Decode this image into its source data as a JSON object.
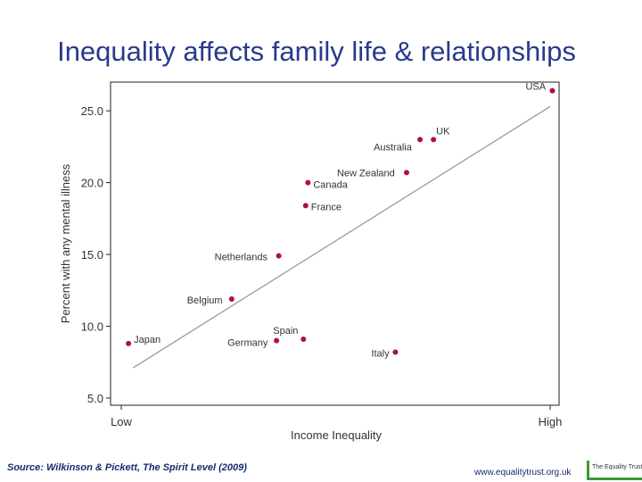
{
  "slide": {
    "title": "Inequality affects family life & relationships",
    "source": "Source: Wilkinson & Pickett, The Spirit Level (2009)",
    "url": "www.equalitytrust.org.uk",
    "logo_text": "The Equality Trust"
  },
  "chart_data": {
    "type": "scatter",
    "xlabel": "Income Inequality",
    "ylabel": "Percent with any mental illness",
    "x_tick_labels": [
      "Low",
      "High"
    ],
    "y_ticks": [
      "5.0",
      "10.0",
      "15.0",
      "20.0",
      "25.0"
    ],
    "x_range": [
      0,
      100
    ],
    "y_range": [
      4.5,
      27.0
    ],
    "grid": false,
    "trendline": [
      {
        "x": 5,
        "y": 7.1
      },
      {
        "x": 98,
        "y": 25.3
      }
    ],
    "points": [
      {
        "label": "USA",
        "x": 98.5,
        "y": 26.4
      },
      {
        "label": "UK",
        "x": 72.0,
        "y": 23.0
      },
      {
        "label": "Australia",
        "x": 69.0,
        "y": 23.0
      },
      {
        "label": "New Zealand",
        "x": 66.0,
        "y": 20.7
      },
      {
        "label": "Canada",
        "x": 44.0,
        "y": 20.0
      },
      {
        "label": "France",
        "x": 43.5,
        "y": 18.4
      },
      {
        "label": "Netherlands",
        "x": 37.5,
        "y": 14.9
      },
      {
        "label": "Belgium",
        "x": 27.0,
        "y": 11.9
      },
      {
        "label": "Spain",
        "x": 43.0,
        "y": 9.1
      },
      {
        "label": "Germany",
        "x": 37.0,
        "y": 9.0
      },
      {
        "label": "Italy",
        "x": 63.5,
        "y": 8.2
      },
      {
        "label": "Japan",
        "x": 4.0,
        "y": 8.8
      }
    ],
    "colors": {
      "point": "#b0103a",
      "line": "#9a9a9a",
      "axis": "#222222",
      "text": "#333333"
    }
  }
}
